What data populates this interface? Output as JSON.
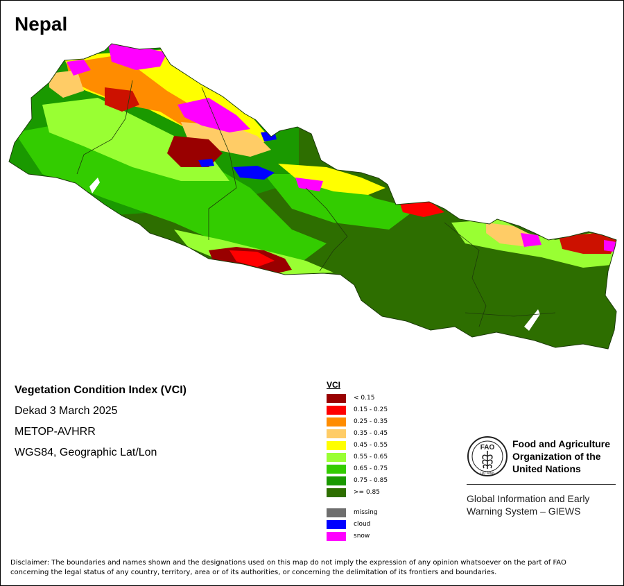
{
  "map": {
    "country": "Nepal",
    "index_name": "Vegetation Condition Index (VCI)",
    "period": "Dekad 3 March 2025",
    "sensor": "METOP-AVHRR",
    "projection": "WGS84, Geographic Lat/Lon"
  },
  "legend": {
    "title": "VCI",
    "classes": [
      {
        "label": "< 0.15",
        "color": "#990000"
      },
      {
        "label": "0.15 - 0.25",
        "color": "#ff0000"
      },
      {
        "label": "0.25 - 0.35",
        "color": "#ff8c00"
      },
      {
        "label": "0.35 - 0.45",
        "color": "#ffcc66"
      },
      {
        "label": "0.45 - 0.55",
        "color": "#ffff00"
      },
      {
        "label": "0.55 - 0.65",
        "color": "#99ff33"
      },
      {
        "label": "0.65 - 0.75",
        "color": "#33cc00"
      },
      {
        "label": "0.75 - 0.85",
        "color": "#1a9900"
      },
      {
        "label": ">= 0.85",
        "color": "#2d6e00"
      }
    ],
    "other": [
      {
        "label": "missing",
        "color": "#6e6e6e"
      },
      {
        "label": "cloud",
        "color": "#0000ff"
      },
      {
        "label": "snow",
        "color": "#ff00ff"
      }
    ]
  },
  "organization": {
    "name_line1": "Food and Agriculture",
    "name_line2": "Organization of the",
    "name_line3": "United Nations",
    "logo_text": "FAO",
    "logo_motto": "FIAT PANIS",
    "system_line1": "Global Information and Early",
    "system_line2": "Warning System – GIEWS"
  },
  "disclaimer": {
    "line1": "Disclaimer: The boundaries and names shown and the designations used on this map do not imply the expression of any opinion whatsoever on the part of FAO",
    "line2": "concerning the legal status of any country, territory, area or of its authorities, or concerning the delimitation of its frontiers and boundaries."
  }
}
